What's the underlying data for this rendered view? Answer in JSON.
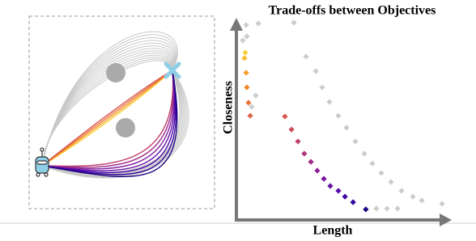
{
  "chart_data": {
    "type": "scatter",
    "title": "Trade-offs between Objectives",
    "x_label": "Length",
    "y_label": "Closeness",
    "xlim": [
      0,
      100
    ],
    "ylim": [
      0,
      100
    ],
    "grid": false,
    "series": [
      {
        "color": "#cccccc",
        "x": [
          4.6,
          10.3,
          27.0,
          32.7,
          37.3,
          40.3,
          43.7,
          47.9,
          51.7,
          55.9,
          60.1,
          63.9,
          68.1,
          72.6,
          77.6,
          82.9,
          87.1,
          96.6,
          65.8,
          70.7,
          75.7,
          3.0,
          4.9,
          9.1,
          7.2
        ],
        "values": [
          97.6,
          98.4,
          98.8,
          81.8,
          74.5,
          66.4,
          59.1,
          52.2,
          46.2,
          39.3,
          33.2,
          28.3,
          23.5,
          19.0,
          14.6,
          11.7,
          9.7,
          8.1,
          5.7,
          5.7,
          5.7,
          89.9,
          91.9,
          62.3,
          56.7
        ]
      },
      {
        "colors": [
          "#fbd13a",
          "#f8b82e",
          "#f59a29",
          "#f08a2b",
          "#e9743a",
          "#e0624a",
          "#d8564f",
          "#cc4a5d",
          "#bf3f6b",
          "#b0347a",
          "#9f2a89",
          "#8c2096",
          "#7817a0",
          "#6611a6",
          "#5508a8",
          "#4403a5",
          "#33019b",
          "#1e0484"
        ],
        "x": [
          4.2,
          3.8,
          4.6,
          4.9,
          5.7,
          6.5,
          22.8,
          25.9,
          28.9,
          31.9,
          35.0,
          38.0,
          41.1,
          44.1,
          47.9,
          51.0,
          54.8,
          60.8
        ],
        "values": [
          83.8,
          81.0,
          73.7,
          66.4,
          58.7,
          52.2,
          51.8,
          45.3,
          39.3,
          33.2,
          29.1,
          24.7,
          20.6,
          17.0,
          14.6,
          11.7,
          8.9,
          5.3
        ]
      }
    ]
  }
}
